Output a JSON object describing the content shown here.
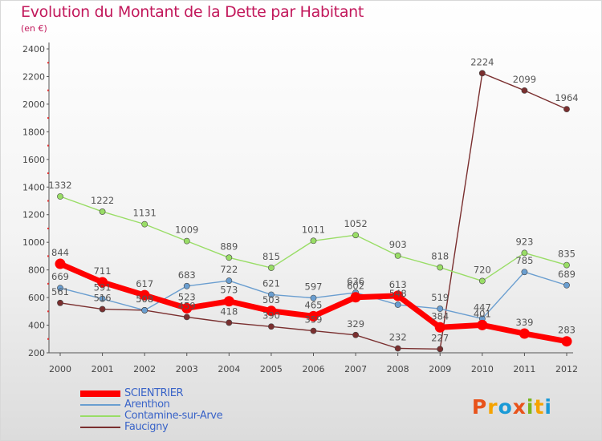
{
  "header": {
    "title": "Evolution du Montant de la Dette par Habitant",
    "unit": "(en €)"
  },
  "brand": {
    "letters": [
      "P",
      "r",
      "o",
      "x",
      "i",
      "t",
      "i"
    ],
    "colors": [
      "#e8521a",
      "#f5a300",
      "#1a9ad6",
      "#e8521a",
      "#7ab51d",
      "#f5a300",
      "#1a9ad6"
    ]
  },
  "chart_data": {
    "type": "line",
    "title": "Evolution du Montant de la Dette par Habitant",
    "subtitle": "(en €)",
    "xlabel": "",
    "ylabel": "",
    "x": [
      "2000",
      "2001",
      "2002",
      "2003",
      "2004",
      "2005",
      "2006",
      "2007",
      "2008",
      "2009",
      "2010",
      "2011",
      "2012"
    ],
    "y_ticks": [
      "200",
      "400",
      "600",
      "800",
      "1000",
      "1200",
      "1400",
      "1600",
      "1800",
      "2000",
      "2200",
      "2400"
    ],
    "ylim": [
      200,
      2400
    ],
    "grid": false,
    "legend_position": "bottom-left",
    "series": [
      {
        "name": "SCIENTRIER",
        "color": "#ff0000",
        "values": [
          844,
          711,
          617,
          523,
          573,
          503,
          465,
          602,
          613,
          384,
          401,
          339,
          283
        ],
        "labels": [
          "844",
          "711",
          "617",
          "523",
          "573",
          "503",
          "465",
          "602",
          "613",
          "384",
          "401",
          "339",
          "283"
        ]
      },
      {
        "name": "Arenthon",
        "color": "#6a9ed0",
        "values": [
          669,
          591,
          508,
          683,
          722,
          621,
          597,
          636,
          548,
          519,
          447,
          785,
          689
        ],
        "labels": [
          "669",
          "591",
          "508",
          "683",
          "722",
          "621",
          "597",
          "636",
          "548",
          "519",
          "447",
          "785",
          "689"
        ]
      },
      {
        "name": "Contamine-sur-Arve",
        "color": "#99dd66",
        "values": [
          1332,
          1222,
          1131,
          1009,
          889,
          815,
          1011,
          1052,
          903,
          818,
          720,
          923,
          835
        ],
        "labels": [
          "1332",
          "1222",
          "1131",
          "1009",
          "889",
          "815",
          "1011",
          "1052",
          "903",
          "818",
          "720",
          "923",
          "835"
        ]
      },
      {
        "name": "Faucigny",
        "color": "#7a2f2f",
        "values": [
          561,
          516,
          508,
          459,
          418,
          390,
          359,
          329,
          232,
          227,
          2224,
          2099,
          1964
        ],
        "labels": [
          "561",
          "516",
          "508",
          "459",
          "418",
          "390",
          "359",
          "329",
          "232",
          "227",
          "2224",
          "2099",
          "1964"
        ]
      }
    ]
  }
}
